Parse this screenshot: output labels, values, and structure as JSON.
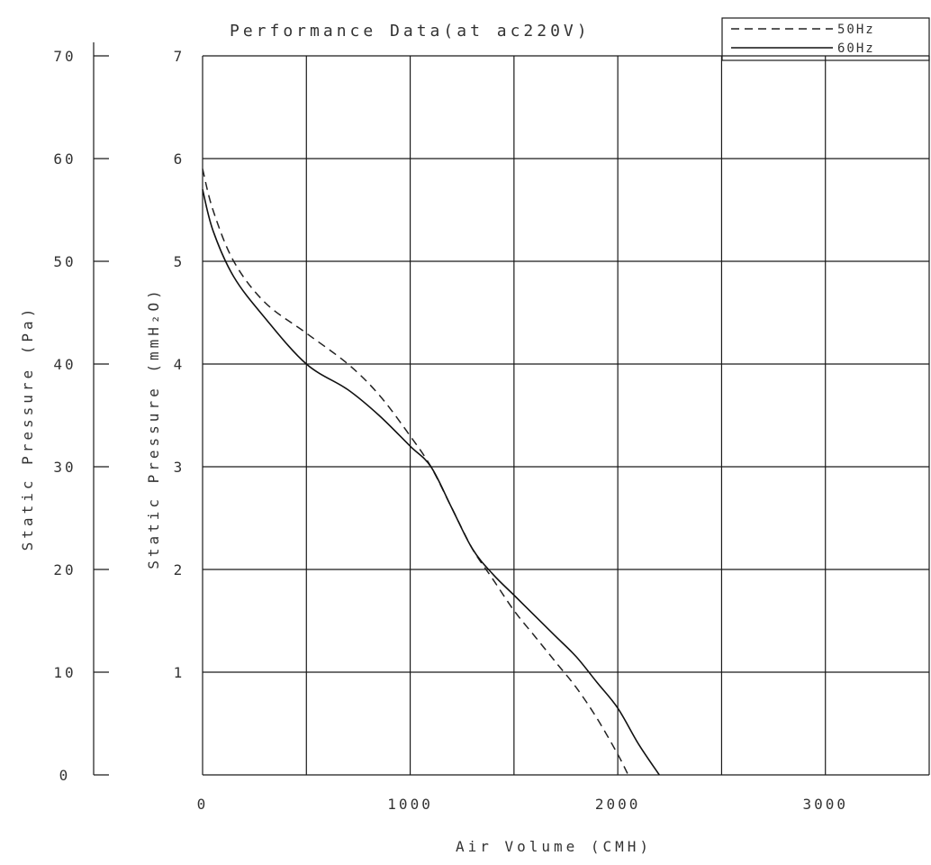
{
  "chart_data": {
    "type": "line",
    "title": "Performance Data(at ac220V)",
    "xlabel": "Air Volume (CMH)",
    "ylabel": "Static Pressure (mmH₂O)",
    "ylabel_secondary": "Static Pressure (Pa)",
    "xlim": [
      0,
      3500
    ],
    "ylim": [
      0,
      7
    ],
    "ylim_secondary": [
      0,
      70
    ],
    "x_ticks": [
      "0",
      "1000",
      "2000",
      "3000"
    ],
    "y_ticks": [
      "1",
      "2",
      "3",
      "4",
      "5",
      "6",
      "7"
    ],
    "y_ticks_secondary": [
      "0",
      "10",
      "20",
      "30",
      "40",
      "50",
      "60",
      "70"
    ],
    "grid": true,
    "legend_position": "top-right",
    "series": [
      {
        "name": "50Hz",
        "style": "dashed",
        "x": [
          0,
          50,
          150,
          300,
          500,
          700,
          850,
          1000,
          1100,
          1200,
          1300,
          1400,
          1500,
          1600,
          1700,
          1800,
          1900,
          2000,
          2050
        ],
        "y": [
          5.9,
          5.5,
          5.0,
          4.6,
          4.3,
          4.0,
          3.7,
          3.3,
          3.0,
          2.6,
          2.2,
          1.9,
          1.6,
          1.35,
          1.1,
          0.85,
          0.55,
          0.2,
          0.0
        ]
      },
      {
        "name": "60Hz",
        "style": "solid",
        "x": [
          0,
          50,
          150,
          300,
          500,
          700,
          850,
          1000,
          1100,
          1200,
          1300,
          1400,
          1500,
          1600,
          1700,
          1800,
          1900,
          2000,
          2100,
          2200
        ],
        "y": [
          5.7,
          5.3,
          4.85,
          4.45,
          4.0,
          3.75,
          3.5,
          3.2,
          3.0,
          2.6,
          2.2,
          1.95,
          1.75,
          1.55,
          1.35,
          1.15,
          0.9,
          0.65,
          0.3,
          0.0
        ]
      }
    ]
  },
  "colors": {
    "background": "#ffffff",
    "grid": "#1a1a1a",
    "text": "#333333"
  }
}
